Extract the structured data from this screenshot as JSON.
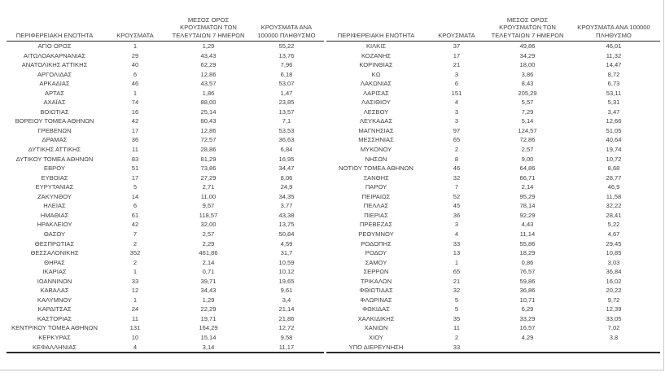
{
  "headers": {
    "region": "ΠΕΡΙΦΕΡΕΙΑΚΗ ΕΝΟΤΗΤΑ",
    "cases": "ΚΡΟΥΣΜΑΤΑ",
    "avg7": "ΜΕΣΟΣ ΟΡΟΣ ΚΡΟΥΣΜΑΤΩΝ ΤΩΝ ΤΕΛΕΥΤΑΙΩΝ 7 ΗΜΕΡΩΝ",
    "per100k": "ΚΡΟΥΣΜΑΤΑ ΑΝΑ 100000 ΠΛΗΘΥΣΜΟ"
  },
  "tables": [
    {
      "rows": [
        {
          "region": "ΑΓΙΟ ΟΡΟΣ",
          "cases": "1",
          "avg7": "1,29",
          "per100k": "55,22"
        },
        {
          "region": "ΑΙΤΩΛΟΑΚΑΡΝΑΝΙΑΣ",
          "cases": "29",
          "avg7": "43,43",
          "per100k": "13,76"
        },
        {
          "region": "ΑΝΑΤΟΛΙΚΗΣ ΑΤΤΙΚΗΣ",
          "cases": "40",
          "avg7": "62,29",
          "per100k": "7,96"
        },
        {
          "region": "ΑΡΓΟΛΙΔΑΣ",
          "cases": "6",
          "avg7": "12,86",
          "per100k": "6,18"
        },
        {
          "region": "ΑΡΚΑΔΙΑΣ",
          "cases": "46",
          "avg7": "43,57",
          "per100k": "53,07"
        },
        {
          "region": "ΑΡΤΑΣ",
          "cases": "1",
          "avg7": "1,86",
          "per100k": "1,47"
        },
        {
          "region": "ΑΧΑΪΑΣ",
          "cases": "74",
          "avg7": "88,00",
          "per100k": "23,85"
        },
        {
          "region": "ΒΟΙΩΤΙΑΣ",
          "cases": "16",
          "avg7": "25,14",
          "per100k": "13,57"
        },
        {
          "region": "ΒΟΡΕΙΟΥ ΤΟΜΕΑ ΑΘΗΝΩΝ",
          "cases": "42",
          "avg7": "80,43",
          "per100k": "7,1"
        },
        {
          "region": "ΓΡΕΒΕΝΩΝ",
          "cases": "17",
          "avg7": "12,86",
          "per100k": "53,53"
        },
        {
          "region": "ΔΡΑΜΑΣ",
          "cases": "36",
          "avg7": "72,57",
          "per100k": "36,63"
        },
        {
          "region": "ΔΥΤΙΚΗΣ ΑΤΤΙΚΗΣ",
          "cases": "11",
          "avg7": "28,86",
          "per100k": "6,84"
        },
        {
          "region": "ΔΥΤΙΚΟΥ ΤΟΜΕΑ ΑΘΗΝΩΝ",
          "cases": "83",
          "avg7": "81,29",
          "per100k": "16,95"
        },
        {
          "region": "ΕΒΡΟΥ",
          "cases": "51",
          "avg7": "73,86",
          "per100k": "34,47"
        },
        {
          "region": "ΕΥΒΟΙΑΣ",
          "cases": "17",
          "avg7": "27,29",
          "per100k": "8,06"
        },
        {
          "region": "ΕΥΡΥΤΑΝΙΑΣ",
          "cases": "5",
          "avg7": "2,71",
          "per100k": "24,9"
        },
        {
          "region": "ΖΑΚΥΝΘΟΥ",
          "cases": "14",
          "avg7": "11,00",
          "per100k": "34,35"
        },
        {
          "region": "ΗΛΕΙΑΣ",
          "cases": "6",
          "avg7": "9,57",
          "per100k": "3,77"
        },
        {
          "region": "ΗΜΑΘΙΑΣ",
          "cases": "61",
          "avg7": "118,57",
          "per100k": "43,38"
        },
        {
          "region": "ΗΡΑΚΛΕΙΟΥ",
          "cases": "42",
          "avg7": "32,00",
          "per100k": "13,75"
        },
        {
          "region": "ΘΑΣΟΥ",
          "cases": "7",
          "avg7": "2,57",
          "per100k": "50,84"
        },
        {
          "region": "ΘΕΣΠΡΩΤΙΑΣ",
          "cases": "2",
          "avg7": "2,29",
          "per100k": "4,59"
        },
        {
          "region": "ΘΕΣΣΑΛΟΝΙΚΗΣ",
          "cases": "352",
          "avg7": "461,86",
          "per100k": "31,7"
        },
        {
          "region": "ΘΗΡΑΣ",
          "cases": "2",
          "avg7": "2,14",
          "per100k": "10,59"
        },
        {
          "region": "ΙΚΑΡΙΑΣ",
          "cases": "1",
          "avg7": "0,71",
          "per100k": "10,12"
        },
        {
          "region": "ΙΩΑΝΝΙΝΩΝ",
          "cases": "33",
          "avg7": "39,71",
          "per100k": "19,65"
        },
        {
          "region": "ΚΑΒΑΛΑΣ",
          "cases": "12",
          "avg7": "34,43",
          "per100k": "9,61"
        },
        {
          "region": "ΚΑΛΥΜΝΟΥ",
          "cases": "1",
          "avg7": "1,29",
          "per100k": "3,4"
        },
        {
          "region": "ΚΑΡΔΙΤΣΑΣ",
          "cases": "24",
          "avg7": "22,29",
          "per100k": "21,14"
        },
        {
          "region": "ΚΑΣΤΟΡΙΑΣ",
          "cases": "11",
          "avg7": "19,71",
          "per100k": "21,86"
        },
        {
          "region": "ΚΕΝΤΡΙΚΟΥ ΤΟΜΕΑ ΑΘΗΝΩΝ",
          "cases": "131",
          "avg7": "164,29",
          "per100k": "12,72"
        },
        {
          "region": "ΚΕΡΚΥΡΑΣ",
          "cases": "10",
          "avg7": "15,14",
          "per100k": "9,58"
        },
        {
          "region": "ΚΕΦΑΛΛΗΝΙΑΣ",
          "cases": "4",
          "avg7": "3,14",
          "per100k": "11,17"
        }
      ]
    },
    {
      "rows": [
        {
          "region": "ΚΙΛΚΙΣ",
          "cases": "37",
          "avg7": "49,86",
          "per100k": "46,01"
        },
        {
          "region": "ΚΟΖΑΝΗΣ",
          "cases": "17",
          "avg7": "34,29",
          "per100k": "11,32"
        },
        {
          "region": "ΚΟΡΙΝΘΙΑΣ",
          "cases": "21",
          "avg7": "18,00",
          "per100k": "14,47"
        },
        {
          "region": "ΚΩ",
          "cases": "3",
          "avg7": "3,86",
          "per100k": "8,72"
        },
        {
          "region": "ΛΑΚΩΝΙΑΣ",
          "cases": "6",
          "avg7": "8,43",
          "per100k": "6,73"
        },
        {
          "region": "ΛΑΡΙΣΑΣ",
          "cases": "151",
          "avg7": "205,29",
          "per100k": "53,11"
        },
        {
          "region": "ΛΑΣΙΘΙΟΥ",
          "cases": "4",
          "avg7": "5,57",
          "per100k": "5,31"
        },
        {
          "region": "ΛΕΣΒΟΥ",
          "cases": "3",
          "avg7": "7,29",
          "per100k": "3,47"
        },
        {
          "region": "ΛΕΥΚΑΔΑΣ",
          "cases": "3",
          "avg7": "5,14",
          "per100k": "12,66"
        },
        {
          "region": "ΜΑΓΝΗΣΙΑΣ",
          "cases": "97",
          "avg7": "124,57",
          "per100k": "51,05"
        },
        {
          "region": "ΜΕΣΣΗΝΙΑΣ",
          "cases": "65",
          "avg7": "72,86",
          "per100k": "40,64"
        },
        {
          "region": "ΜΥΚΟΝΟΥ",
          "cases": "2",
          "avg7": "2,57",
          "per100k": "19,74"
        },
        {
          "region": "ΝΗΣΩΝ",
          "cases": "8",
          "avg7": "9,00",
          "per100k": "10,72"
        },
        {
          "region": "ΝΟΤΙΟΥ ΤΟΜΕΑ ΑΘΗΝΩΝ",
          "cases": "46",
          "avg7": "64,86",
          "per100k": "8,68"
        },
        {
          "region": "ΞΑΝΘΗΣ",
          "cases": "32",
          "avg7": "66,71",
          "per100k": "28,77"
        },
        {
          "region": "ΠΑΡΟΥ",
          "cases": "7",
          "avg7": "2,14",
          "per100k": "46,9"
        },
        {
          "region": "ΠΕΙΡΑΙΩΣ",
          "cases": "52",
          "avg7": "95,29",
          "per100k": "11,58"
        },
        {
          "region": "ΠΕΛΛΑΣ",
          "cases": "45",
          "avg7": "78,14",
          "per100k": "32,22"
        },
        {
          "region": "ΠΙΕΡΙΑΣ",
          "cases": "36",
          "avg7": "92,29",
          "per100k": "28,41"
        },
        {
          "region": "ΠΡΕΒΕΖΑΣ",
          "cases": "3",
          "avg7": "4,43",
          "per100k": "5,22"
        },
        {
          "region": "ΡΕΘΥΜΝΟΥ",
          "cases": "4",
          "avg7": "11,14",
          "per100k": "4,67"
        },
        {
          "region": "ΡΟΔΟΠΗΣ",
          "cases": "33",
          "avg7": "55,86",
          "per100k": "29,45"
        },
        {
          "region": "ΡΟΔΟΥ",
          "cases": "13",
          "avg7": "18,29",
          "per100k": "10,85"
        },
        {
          "region": "ΣΑΜΟΥ",
          "cases": "1",
          "avg7": "0,86",
          "per100k": "3,03"
        },
        {
          "region": "ΣΕΡΡΩΝ",
          "cases": "65",
          "avg7": "76,57",
          "per100k": "36,84"
        },
        {
          "region": "ΤΡΙΚΑΛΩΝ",
          "cases": "21",
          "avg7": "59,86",
          "per100k": "16,02"
        },
        {
          "region": "ΦΘΙΩΤΙΔΑΣ",
          "cases": "32",
          "avg7": "36,86",
          "per100k": "20,22"
        },
        {
          "region": "ΦΛΩΡΙΝΑΣ",
          "cases": "5",
          "avg7": "10,71",
          "per100k": "9,72"
        },
        {
          "region": "ΦΩΚΙΔΑΣ",
          "cases": "5",
          "avg7": "6,29",
          "per100k": "12,39"
        },
        {
          "region": "ΧΑΛΚΙΔΙΚΗΣ",
          "cases": "35",
          "avg7": "33,29",
          "per100k": "33,05"
        },
        {
          "region": "ΧΑΝΙΩΝ",
          "cases": "11",
          "avg7": "16,57",
          "per100k": "7,02"
        },
        {
          "region": "ΧΙΟΥ",
          "cases": "2",
          "avg7": "4,29",
          "per100k": "3,8"
        },
        {
          "region": "ΥΠΟ ΔΙΕΡΕΥΝΗΣΗ",
          "cases": "33",
          "avg7": "",
          "per100k": ""
        }
      ]
    }
  ]
}
